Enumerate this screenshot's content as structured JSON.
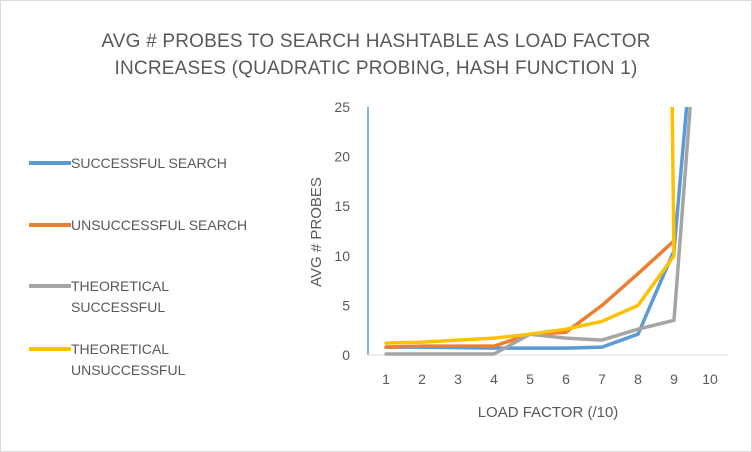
{
  "chart_data": {
    "type": "line",
    "title": "AVG # PROBES TO SEARCH HASHTABLE AS LOAD FACTOR INCREASES (QUADRATIC PROBING, HASH FUNCTION 1)",
    "title_lines": [
      "AVG # PROBES TO SEARCH HASHTABLE AS LOAD FACTOR",
      "INCREASES (QUADRATIC PROBING, HASH FUNCTION 1)"
    ],
    "xlabel": "LOAD FACTOR (/10)",
    "ylabel": "AVG # PROBES",
    "ylim": [
      0,
      25
    ],
    "xlim": [
      0.5,
      10.5
    ],
    "x_ticks": [
      "1",
      "2",
      "3",
      "4",
      "5",
      "6",
      "7",
      "8",
      "9",
      "10"
    ],
    "y_ticks": [
      "0",
      "5",
      "10",
      "15",
      "20",
      "25"
    ],
    "grid": false,
    "legend_position": "left",
    "series": [
      {
        "name": "SUCCESSFUL SEARCH",
        "color": "#5b9bd5",
        "x": [
          1,
          2,
          3,
          4,
          5,
          6,
          7,
          8,
          9,
          9.35
        ],
        "y": [
          0.8,
          0.8,
          0.75,
          0.7,
          0.7,
          0.7,
          0.8,
          2.1,
          10.5,
          25
        ]
      },
      {
        "name": "UNSUCCESSFUL SEARCH",
        "color": "#ed7d31",
        "x": [
          1,
          2,
          3,
          4,
          5,
          6,
          7,
          8,
          9
        ],
        "y": [
          0.8,
          0.9,
          0.9,
          0.9,
          2.1,
          2.3,
          5.0,
          8.2,
          11.5
        ]
      },
      {
        "name": "THEORETICAL SUCCESSFUL",
        "color": "#a5a5a5",
        "x": [
          1,
          2,
          3,
          4,
          5,
          6,
          7,
          8,
          9,
          9.45
        ],
        "y": [
          0.1,
          0.1,
          0.1,
          0.1,
          2.1,
          1.7,
          1.5,
          2.6,
          3.5,
          25
        ]
      },
      {
        "name": "THEORETICAL UNSUCCESSFUL",
        "color": "#ffc000",
        "x": [
          1,
          2,
          3,
          4,
          5,
          6,
          7,
          8,
          9,
          8.95
        ],
        "y": [
          1.2,
          1.3,
          1.5,
          1.7,
          2.1,
          2.6,
          3.4,
          5.0,
          10.0,
          25
        ]
      }
    ]
  }
}
